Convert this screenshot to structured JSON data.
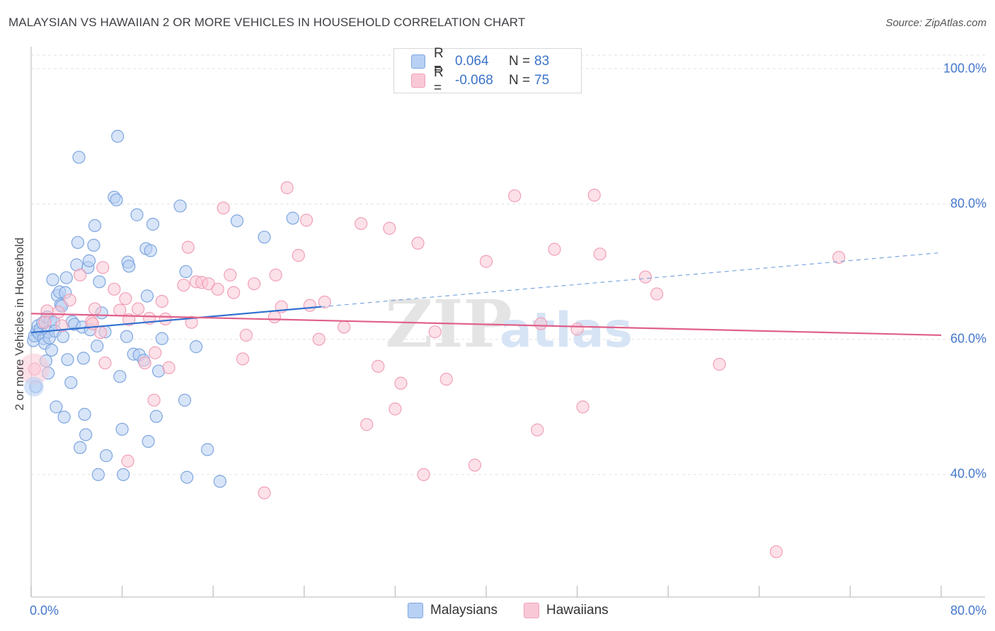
{
  "title": "MALAYSIAN VS HAWAIIAN 2 OR MORE VEHICLES IN HOUSEHOLD CORRELATION CHART",
  "source": "Source: ZipAtlas.com",
  "watermark": {
    "zip": "ZIP",
    "atlas": "atlas"
  },
  "legend": [
    {
      "r_label": "R =",
      "r_value": "0.064",
      "n_label": "N =",
      "n_value": "83",
      "fill": "#b8d0f3",
      "stroke": "#7ea6e0"
    },
    {
      "r_label": "R =",
      "r_value": "-0.068",
      "n_label": "N =",
      "n_value": "75",
      "fill": "#f9c8d6",
      "stroke": "#f0a0b8"
    }
  ],
  "bottom_legend": [
    {
      "label": "Malaysians",
      "fill": "#b8d0f3",
      "stroke": "#7ea6e0"
    },
    {
      "label": "Hawaiians",
      "fill": "#f9c8d6",
      "stroke": "#f0a0b8"
    }
  ],
  "chart_data": {
    "type": "scatter",
    "xlabel": "",
    "ylabel": "2 or more Vehicles in Household",
    "xlim": [
      0,
      80
    ],
    "ylim": [
      20,
      104
    ],
    "x_tick_labels": [
      "0.0%",
      "80.0%"
    ],
    "y_tick_labels": [
      "100.0%",
      "80.0%",
      "60.0%",
      "40.0%"
    ],
    "y_tick_values": [
      100,
      80,
      60,
      40
    ],
    "grid": "horizontal dashed",
    "legend_position": "top-center",
    "series": [
      {
        "name": "Malaysians",
        "color": "#7ea6e0",
        "fill": "#b8d0f3",
        "trend": {
          "x0": 0,
          "y0": 61.0,
          "x1": 25.5,
          "y1": 64.8,
          "dashed_to_x": 80,
          "dashed_to_y": 72.8,
          "color": "#2f6fd0"
        },
        "points": [
          [
            0.2,
            59.8
          ],
          [
            0.3,
            60.5
          ],
          [
            0.5,
            61.2
          ],
          [
            0.6,
            62.0
          ],
          [
            0.7,
            60.8
          ],
          [
            0.8,
            61.5
          ],
          [
            1.0,
            62.4
          ],
          [
            1.1,
            60.1
          ],
          [
            1.2,
            59.4
          ],
          [
            1.3,
            56.8
          ],
          [
            1.4,
            63.3
          ],
          [
            1.5,
            61.1
          ],
          [
            1.6,
            60.2
          ],
          [
            1.7,
            62.9
          ],
          [
            1.8,
            58.4
          ],
          [
            1.9,
            68.8
          ],
          [
            2.0,
            62.5
          ],
          [
            2.1,
            61.2
          ],
          [
            2.3,
            66.5
          ],
          [
            2.5,
            67.0
          ],
          [
            2.6,
            65.1
          ],
          [
            2.7,
            64.9
          ],
          [
            2.8,
            60.4
          ],
          [
            3.0,
            66.9
          ],
          [
            3.1,
            69.1
          ],
          [
            3.2,
            57.0
          ],
          [
            3.5,
            53.6
          ],
          [
            3.6,
            62.6
          ],
          [
            3.8,
            62.2
          ],
          [
            4.0,
            71.0
          ],
          [
            4.1,
            74.3
          ],
          [
            4.2,
            86.9
          ],
          [
            4.5,
            61.8
          ],
          [
            4.6,
            57.2
          ],
          [
            4.7,
            48.9
          ],
          [
            4.8,
            45.9
          ],
          [
            5.0,
            70.6
          ],
          [
            5.1,
            71.6
          ],
          [
            5.2,
            61.4
          ],
          [
            5.5,
            73.9
          ],
          [
            5.6,
            76.8
          ],
          [
            5.8,
            59.0
          ],
          [
            6.0,
            68.5
          ],
          [
            6.2,
            63.9
          ],
          [
            6.5,
            61.1
          ],
          [
            6.6,
            42.8
          ],
          [
            7.3,
            81.0
          ],
          [
            7.5,
            80.6
          ],
          [
            7.6,
            90.0
          ],
          [
            7.8,
            54.5
          ],
          [
            8.0,
            46.7
          ],
          [
            8.1,
            40.0
          ],
          [
            8.4,
            60.4
          ],
          [
            8.5,
            71.4
          ],
          [
            8.6,
            70.8
          ],
          [
            9.0,
            57.8
          ],
          [
            9.3,
            78.4
          ],
          [
            9.5,
            57.7
          ],
          [
            9.9,
            56.9
          ],
          [
            10.1,
            73.4
          ],
          [
            10.2,
            66.4
          ],
          [
            10.3,
            44.9
          ],
          [
            10.5,
            73.1
          ],
          [
            10.7,
            77.0
          ],
          [
            11.0,
            48.6
          ],
          [
            11.2,
            55.3
          ],
          [
            11.5,
            60.1
          ],
          [
            13.1,
            79.7
          ],
          [
            13.5,
            51.0
          ],
          [
            13.6,
            70.0
          ],
          [
            13.7,
            39.6
          ],
          [
            14.5,
            58.9
          ],
          [
            15.5,
            43.7
          ],
          [
            16.6,
            39.0
          ],
          [
            18.1,
            77.5
          ],
          [
            20.5,
            75.1
          ],
          [
            23.0,
            77.9
          ],
          [
            2.9,
            48.5
          ],
          [
            4.3,
            44.0
          ],
          [
            0.4,
            53.0
          ],
          [
            5.9,
            40.0
          ],
          [
            1.5,
            55.0
          ],
          [
            2.2,
            50.0
          ]
        ]
      },
      {
        "name": "Hawaiians",
        "color": "#f0a0b8",
        "fill": "#f9c8d6",
        "trend": {
          "x0": 0,
          "y0": 63.8,
          "x1": 80,
          "y1": 60.6,
          "color": "#e0608a"
        },
        "points": [
          [
            0.3,
            55.6
          ],
          [
            1.2,
            62.5
          ],
          [
            1.4,
            64.2
          ],
          [
            2.7,
            62.0
          ],
          [
            3.4,
            65.8
          ],
          [
            4.3,
            69.5
          ],
          [
            5.3,
            62.6
          ],
          [
            5.4,
            62.3
          ],
          [
            5.6,
            64.5
          ],
          [
            6.1,
            61.0
          ],
          [
            6.3,
            70.6
          ],
          [
            6.5,
            56.5
          ],
          [
            7.3,
            67.4
          ],
          [
            7.8,
            64.3
          ],
          [
            8.3,
            66.0
          ],
          [
            8.5,
            42.0
          ],
          [
            8.6,
            62.9
          ],
          [
            9.4,
            64.5
          ],
          [
            10.0,
            56.5
          ],
          [
            10.4,
            63.1
          ],
          [
            10.8,
            51.0
          ],
          [
            10.9,
            58.0
          ],
          [
            11.5,
            65.6
          ],
          [
            11.8,
            63.0
          ],
          [
            12.1,
            55.8
          ],
          [
            13.4,
            68.0
          ],
          [
            13.8,
            73.6
          ],
          [
            14.1,
            62.5
          ],
          [
            14.5,
            68.5
          ],
          [
            15.0,
            68.4
          ],
          [
            15.6,
            68.2
          ],
          [
            16.4,
            67.4
          ],
          [
            16.9,
            79.4
          ],
          [
            17.5,
            69.5
          ],
          [
            17.8,
            66.9
          ],
          [
            18.6,
            57.1
          ],
          [
            18.9,
            60.6
          ],
          [
            19.6,
            68.2
          ],
          [
            20.5,
            37.3
          ],
          [
            21.4,
            63.3
          ],
          [
            21.5,
            69.5
          ],
          [
            22.0,
            64.8
          ],
          [
            22.5,
            82.4
          ],
          [
            23.5,
            72.4
          ],
          [
            24.2,
            77.6
          ],
          [
            24.5,
            65.0
          ],
          [
            25.3,
            60.0
          ],
          [
            25.8,
            65.5
          ],
          [
            27.5,
            61.8
          ],
          [
            29.0,
            77.1
          ],
          [
            29.5,
            47.4
          ],
          [
            30.5,
            56.0
          ],
          [
            31.5,
            76.4
          ],
          [
            32.0,
            49.7
          ],
          [
            32.5,
            53.5
          ],
          [
            34.0,
            74.2
          ],
          [
            34.5,
            40.0
          ],
          [
            35.5,
            61.1
          ],
          [
            36.5,
            54.1
          ],
          [
            39.0,
            41.4
          ],
          [
            40.0,
            71.5
          ],
          [
            42.5,
            81.2
          ],
          [
            44.5,
            46.6
          ],
          [
            44.8,
            62.3
          ],
          [
            46.0,
            73.3
          ],
          [
            48.0,
            61.5
          ],
          [
            48.5,
            50.0
          ],
          [
            49.5,
            81.3
          ],
          [
            50.0,
            72.6
          ],
          [
            54.0,
            69.2
          ],
          [
            55.0,
            66.7
          ],
          [
            60.5,
            56.3
          ],
          [
            65.5,
            28.6
          ],
          [
            71.0,
            72.1
          ],
          [
            2.4,
            64.0
          ]
        ]
      }
    ]
  }
}
